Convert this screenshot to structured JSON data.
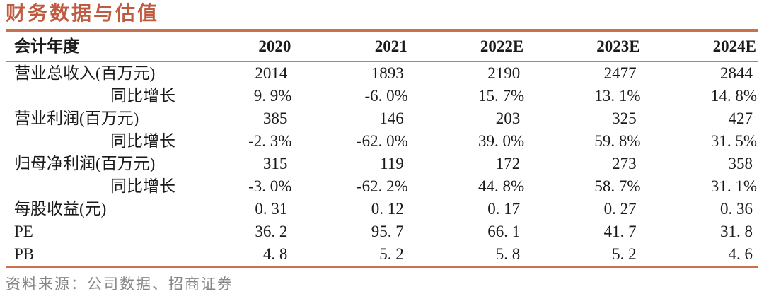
{
  "title": "财务数据与估值",
  "source_note": "资料来源：公司数据、招商证券",
  "colors": {
    "accent_title": "#c05a40",
    "rule_thick": "#c9714f",
    "rule_thin": "#cd7a57",
    "body_text": "#1a1a1a",
    "source_text": "#868686"
  },
  "table": {
    "header": {
      "label": "会计年度",
      "years": [
        "2020",
        "2021",
        "2022E",
        "2023E",
        "2024E"
      ]
    },
    "rows": [
      {
        "label": "营业总收入(百万元)",
        "values": [
          "2014",
          "1893",
          "2190",
          "2477",
          "2844"
        ]
      },
      {
        "label": "同比增长",
        "values": [
          "9. 9%",
          "-6. 0%",
          "15. 7%",
          "13. 1%",
          "14. 8%"
        ]
      },
      {
        "label": "营业利润(百万元)",
        "values": [
          "385",
          "146",
          "203",
          "325",
          "427"
        ]
      },
      {
        "label": "同比增长",
        "values": [
          "-2. 3%",
          "-62. 0%",
          "39. 0%",
          "59. 8%",
          "31. 5%"
        ]
      },
      {
        "label": "归母净利润(百万元)",
        "values": [
          "315",
          "119",
          "172",
          "273",
          "358"
        ]
      },
      {
        "label": "同比增长",
        "values": [
          "-3. 0%",
          "-62. 2%",
          "44. 8%",
          "58. 7%",
          "31. 1%"
        ]
      },
      {
        "label": "每股收益(元)",
        "values": [
          "0. 31",
          "0. 12",
          "0. 17",
          "0. 27",
          "0. 36"
        ]
      },
      {
        "label": "PE",
        "values": [
          "36. 2",
          "95. 7",
          "66. 1",
          "41. 7",
          "31. 8"
        ]
      },
      {
        "label": "PB",
        "values": [
          "4. 8",
          "5. 2",
          "5. 8",
          "5. 2",
          "4. 6"
        ]
      }
    ]
  },
  "chart_data": {
    "type": "table",
    "title": "财务数据与估值",
    "columns": [
      "2020",
      "2021",
      "2022E",
      "2023E",
      "2024E"
    ],
    "rows": [
      {
        "name": "营业总收入(百万元)",
        "values": [
          2014,
          1893,
          2190,
          2477,
          2844
        ]
      },
      {
        "name": "营业总收入同比增长(%)",
        "values": [
          9.9,
          -6.0,
          15.7,
          13.1,
          14.8
        ]
      },
      {
        "name": "营业利润(百万元)",
        "values": [
          385,
          146,
          203,
          325,
          427
        ]
      },
      {
        "name": "营业利润同比增长(%)",
        "values": [
          -2.3,
          -62.0,
          39.0,
          59.8,
          31.5
        ]
      },
      {
        "name": "归母净利润(百万元)",
        "values": [
          315,
          119,
          172,
          273,
          358
        ]
      },
      {
        "name": "归母净利润同比增长(%)",
        "values": [
          -3.0,
          -62.2,
          44.8,
          58.7,
          31.1
        ]
      },
      {
        "name": "每股收益(元)",
        "values": [
          0.31,
          0.12,
          0.17,
          0.27,
          0.36
        ]
      },
      {
        "name": "PE",
        "values": [
          36.2,
          95.7,
          66.1,
          41.7,
          31.8
        ]
      },
      {
        "name": "PB",
        "values": [
          4.8,
          5.2,
          5.8,
          5.2,
          4.6
        ]
      }
    ],
    "source": "公司数据、招商证券"
  }
}
